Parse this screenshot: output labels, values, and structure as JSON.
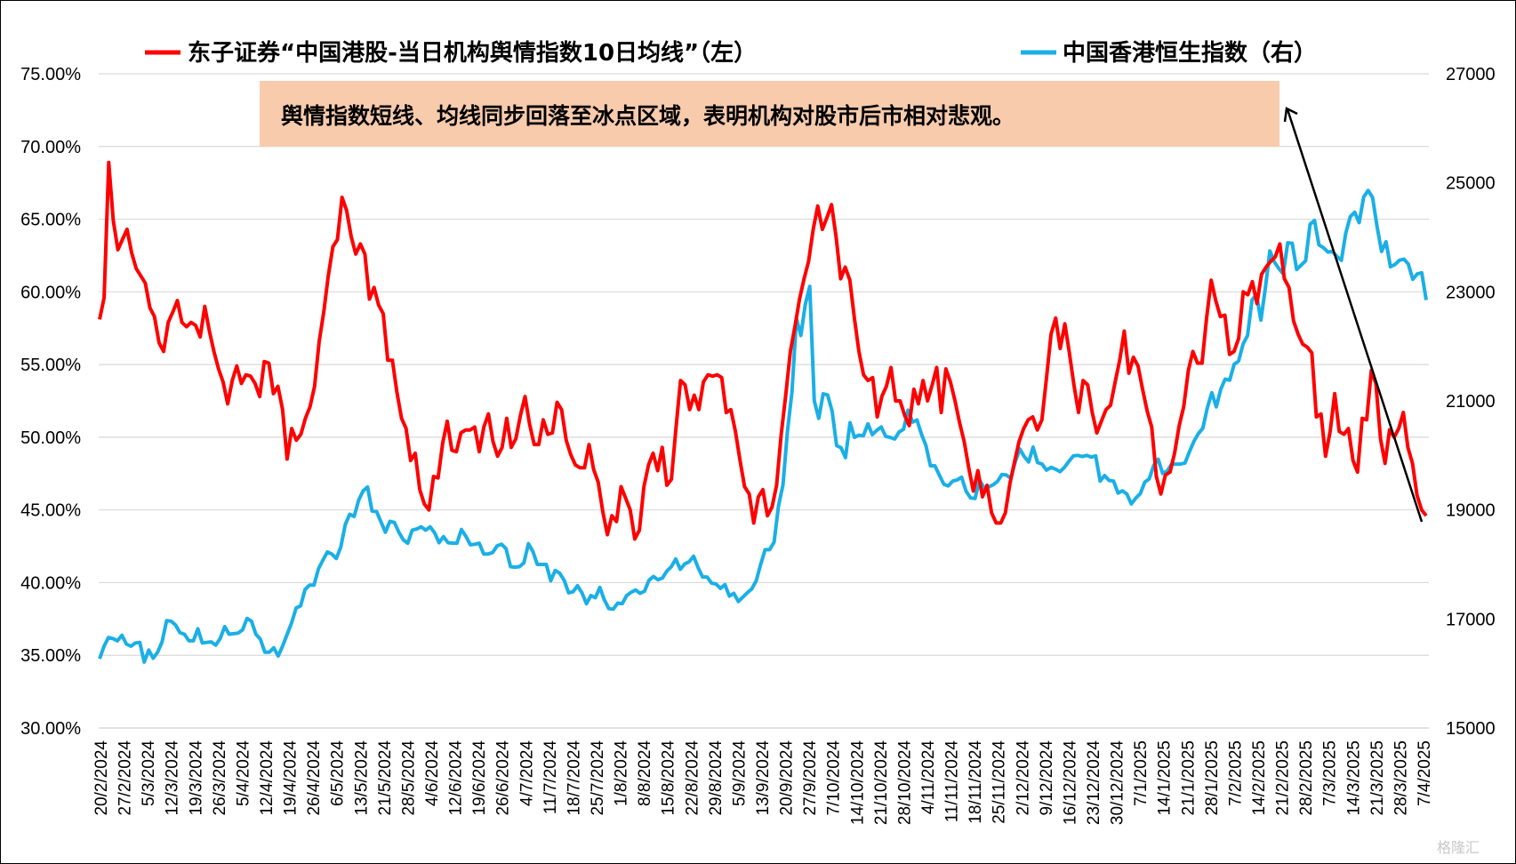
{
  "chart_data": {
    "type": "line",
    "legend_placement": "top",
    "grid": "horizontal",
    "colors": {
      "series_left": "#ff0000",
      "series_right": "#1aafe6",
      "annotation_box": "#f8cbad",
      "arrow": "#000000"
    },
    "annotation": "舆情指数短线、均线同步回落至冰点区域，表明机构对股市后市相对悲观。",
    "watermark": "格隆汇",
    "y_left": {
      "ylim": [
        30,
        75
      ],
      "ticks": [
        "30.00%",
        "35.00%",
        "40.00%",
        "45.00%",
        "50.00%",
        "55.00%",
        "60.00%",
        "65.00%",
        "70.00%",
        "75.00%"
      ]
    },
    "y_right": {
      "ylim": [
        15000,
        27000
      ],
      "ticks": [
        "15000",
        "17000",
        "19000",
        "21000",
        "23000",
        "25000",
        "27000"
      ]
    },
    "x_tick_labels": [
      "20/2/2024",
      "27/2/2024",
      "5/3/2024",
      "12/3/2024",
      "19/3/2024",
      "26/3/2024",
      "5/4/2024",
      "12/4/2024",
      "19/4/2024",
      "26/4/2024",
      "6/5/2024",
      "13/5/2024",
      "21/5/2024",
      "28/5/2024",
      "4/6/2024",
      "12/6/2024",
      "19/6/2024",
      "26/6/2024",
      "4/7/2024",
      "11/7/2024",
      "18/7/2024",
      "25/7/2024",
      "1/8/2024",
      "8/8/2024",
      "15/8/2024",
      "22/8/2024",
      "29/8/2024",
      "5/9/2024",
      "13/9/2024",
      "20/9/2024",
      "27/9/2024",
      "7/10/2024",
      "14/10/2024",
      "21/10/2024",
      "28/10/2024",
      "4/11/2024",
      "11/11/2024",
      "18/11/2024",
      "25/11/2024",
      "2/12/2024",
      "9/12/2024",
      "16/12/2024",
      "23/12/2024",
      "30/12/2024",
      "7/1/2025",
      "14/1/2025",
      "21/1/2025",
      "28/1/2025",
      "7/2/2025",
      "14/2/2025",
      "21/2/2025",
      "28/2/2025",
      "7/3/2025",
      "14/3/2025",
      "21/3/2025",
      "28/3/2025",
      "7/4/2025"
    ],
    "series": [
      {
        "name": "东子证券“中国港股-当日机构舆情指数10日均线”（左）",
        "axis": "left",
        "values": [
          58.1,
          59.6,
          68.9,
          64.9,
          62.9,
          63.6,
          64.3,
          62.7,
          61.6,
          61.1,
          60.6,
          58.9,
          58.3,
          56.5,
          55.9,
          57.9,
          58.6,
          59.4,
          57.9,
          57.6,
          57.9,
          57.7,
          56.9,
          59.0,
          57.3,
          55.9,
          54.7,
          53.8,
          52.3,
          53.9,
          54.9,
          53.7,
          54.3,
          54.2,
          53.7,
          52.8,
          55.2,
          55.1,
          53.0,
          53.5,
          51.9,
          48.5,
          50.6,
          49.8,
          50.2,
          51.3,
          52.1,
          53.5,
          56.6,
          58.6,
          61.1,
          63.1,
          63.6,
          66.5,
          65.6,
          63.8,
          62.6,
          63.3,
          62.6,
          59.5,
          60.3,
          59.1,
          58.5,
          55.3,
          55.3,
          53.1,
          51.3,
          50.6,
          48.4,
          48.9,
          46.4,
          45.4,
          45.0,
          47.3,
          47.2,
          49.6,
          51.1,
          49.1,
          49.0,
          50.3,
          50.5,
          50.5,
          50.7,
          49.0,
          50.7,
          51.6,
          49.7,
          48.7,
          49.3,
          51.3,
          49.3,
          49.9,
          51.5,
          52.8,
          50.9,
          49.5,
          49.5,
          51.2,
          50.2,
          50.3,
          52.4,
          51.9,
          49.8,
          48.8,
          48.1,
          47.9,
          47.9,
          49.5,
          47.8,
          46.9,
          44.9,
          43.3,
          44.6,
          44.2,
          46.6,
          45.8,
          45.0,
          43.0,
          43.6,
          46.6,
          48.1,
          48.9,
          47.7,
          49.3,
          46.7,
          47.1,
          50.6,
          53.9,
          53.6,
          51.9,
          52.9,
          51.9,
          53.8,
          54.3,
          54.2,
          54.3,
          54.1,
          51.7,
          51.9,
          50.4,
          48.4,
          46.6,
          46.1,
          44.1,
          45.9,
          46.4,
          44.6,
          45.2,
          46.7,
          50.2,
          52.9,
          55.9,
          57.6,
          59.5,
          60.9,
          62.1,
          64.3,
          65.9,
          64.3,
          65.1,
          66.0,
          63.8,
          60.9,
          61.7,
          60.8,
          58.2,
          55.9,
          54.3,
          53.9,
          54.1,
          51.4,
          52.8,
          53.5,
          54.8,
          52.5,
          52.5,
          51.5,
          50.8,
          53.3,
          52.3,
          53.9,
          52.5,
          53.6,
          54.8,
          51.7,
          54.7,
          53.8,
          52.5,
          51.0,
          49.7,
          47.9,
          46.3,
          47.7,
          45.9,
          46.7,
          44.8,
          44.1,
          44.1,
          44.8,
          46.8,
          48.3,
          49.7,
          50.6,
          51.2,
          51.4,
          50.5,
          51.2,
          54.1,
          57.1,
          58.2,
          56.1,
          57.8,
          55.8,
          53.6,
          51.7,
          53.9,
          53.6,
          51.7,
          50.3,
          51.1,
          51.9,
          52.2,
          53.8,
          55.3,
          57.3,
          54.4,
          55.5,
          54.9,
          53.3,
          51.8,
          50.7,
          47.3,
          46.1,
          47.4,
          47.6,
          48.9,
          50.8,
          52.1,
          54.6,
          55.9,
          55.1,
          55.1,
          58.2,
          60.8,
          59.4,
          58.3,
          58.4,
          55.7,
          55.9,
          56.8,
          60.0,
          59.8,
          60.7,
          59.2,
          61.2,
          61.7,
          62.1,
          62.4,
          63.3,
          60.9,
          60.3,
          58.0,
          57.1,
          56.4,
          56.2,
          55.8,
          51.4,
          51.6,
          48.7,
          50.4,
          53.0,
          50.4,
          50.2,
          50.6,
          48.4,
          47.6,
          51.3,
          51.2,
          54.6,
          53.7,
          49.9,
          48.2,
          50.5,
          50.0,
          50.6,
          51.7,
          49.3,
          48.2,
          46.0,
          45.0,
          44.6
        ]
      },
      {
        "name": "中国香港恒生指数（右）",
        "axis": "right",
        "values": [
          16270,
          16500,
          16660,
          16640,
          16600,
          16700,
          16540,
          16500,
          16560,
          16570,
          16210,
          16430,
          16280,
          16390,
          16580,
          16970,
          16960,
          16890,
          16750,
          16720,
          16600,
          16600,
          16820,
          16560,
          16570,
          16580,
          16520,
          16640,
          16860,
          16720,
          16730,
          16740,
          16800,
          17010,
          16960,
          16720,
          16630,
          16390,
          16390,
          16470,
          16320,
          16510,
          16720,
          16930,
          17200,
          17240,
          17540,
          17620,
          17620,
          17920,
          18080,
          18230,
          18190,
          18110,
          18320,
          18730,
          18920,
          18880,
          19180,
          19350,
          19420,
          18980,
          18970,
          18780,
          18590,
          18790,
          18770,
          18590,
          18450,
          18390,
          18630,
          18650,
          18690,
          18630,
          18690,
          18580,
          18400,
          18510,
          18400,
          18390,
          18390,
          18640,
          18520,
          18360,
          18370,
          18390,
          18190,
          18190,
          18220,
          18340,
          18370,
          18290,
          17960,
          17950,
          17960,
          18030,
          18380,
          18240,
          18000,
          18000,
          18000,
          17700,
          17890,
          17840,
          17710,
          17480,
          17500,
          17610,
          17480,
          17280,
          17430,
          17390,
          17580,
          17350,
          17190,
          17180,
          17290,
          17280,
          17430,
          17490,
          17530,
          17470,
          17510,
          17710,
          17780,
          17720,
          17750,
          17880,
          17960,
          18100,
          17910,
          18010,
          18050,
          18150,
          17940,
          17770,
          17770,
          17660,
          17640,
          17560,
          17630,
          17420,
          17470,
          17320,
          17400,
          17480,
          17550,
          17700,
          18000,
          18270,
          18270,
          18410,
          19080,
          19460,
          20440,
          21160,
          22510,
          22200,
          22770,
          23100,
          21000,
          20680,
          21130,
          21110,
          20810,
          20180,
          20140,
          19960,
          20600,
          20330,
          20370,
          20360,
          20580,
          20380,
          20460,
          20520,
          20350,
          20330,
          20300,
          20430,
          20480,
          20830,
          20610,
          20650,
          20390,
          20180,
          19810,
          19810,
          19640,
          19470,
          19440,
          19530,
          19550,
          19600,
          19340,
          19220,
          19210,
          19550,
          19400,
          19420,
          19460,
          19520,
          19650,
          19640,
          19580,
          19880,
          20120,
          19980,
          19880,
          20150,
          19870,
          19840,
          19730,
          19780,
          19750,
          19700,
          19780,
          19890,
          19990,
          20000,
          19980,
          20000,
          19970,
          19990,
          19530,
          19630,
          19540,
          19530,
          19310,
          19350,
          19290,
          19110,
          19220,
          19300,
          19510,
          19570,
          19820,
          19930,
          19670,
          19710,
          19840,
          19840,
          19840,
          19860,
          20070,
          20260,
          20400,
          20500,
          20870,
          21150,
          20890,
          21210,
          21400,
          21380,
          21670,
          21730,
          22040,
          22200,
          22850,
          22950,
          22480,
          23080,
          23750,
          23550,
          23430,
          23330,
          23900,
          23890,
          23410,
          23490,
          23570,
          24240,
          24310,
          23860,
          23810,
          23730,
          23740,
          23650,
          23580,
          24080,
          24380,
          24460,
          24270,
          24740,
          24860,
          24730,
          24200,
          23740,
          23920,
          23460,
          23500,
          23580,
          23600,
          23510,
          23230,
          23330,
          23350,
          22850
        ]
      }
    ]
  }
}
